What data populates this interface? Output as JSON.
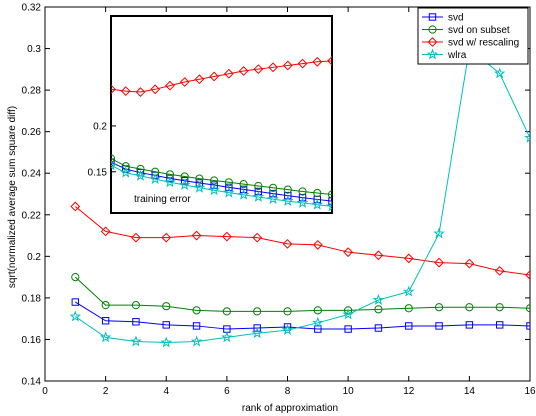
{
  "chart_data": {
    "type": "line",
    "main": {
      "xlabel": "rank of approximation",
      "ylabel": "sqrt(normalized average sum square diff)",
      "xlim": [
        0,
        16
      ],
      "ylim": [
        0.14,
        0.32
      ],
      "xticks": [
        0,
        2,
        4,
        6,
        8,
        10,
        12,
        14,
        16
      ],
      "yticks": [
        0.14,
        0.16,
        0.18,
        0.2,
        0.22,
        0.24,
        0.26,
        0.28,
        0.3,
        0.32
      ],
      "x": [
        1,
        2,
        3,
        4,
        5,
        6,
        7,
        8,
        9,
        10,
        11,
        12,
        13,
        14,
        15,
        16
      ],
      "series": [
        {
          "name": "svd",
          "color": "#0000ff",
          "marker": "square",
          "values": [
            0.178,
            0.169,
            0.1685,
            0.167,
            0.1665,
            0.165,
            0.1655,
            0.166,
            0.165,
            0.165,
            0.1655,
            0.1665,
            0.1665,
            0.167,
            0.167,
            0.1665
          ]
        },
        {
          "name": "svd on subset",
          "color": "#008000",
          "marker": "circle",
          "values": [
            0.19,
            0.1765,
            0.1765,
            0.176,
            0.174,
            0.1735,
            0.1735,
            0.1735,
            0.174,
            0.174,
            0.1745,
            0.175,
            0.1755,
            0.1755,
            0.1755,
            0.175
          ]
        },
        {
          "name": "svd w/ rescaling",
          "color": "#ff0000",
          "marker": "diamond",
          "values": [
            0.224,
            0.212,
            0.209,
            0.209,
            0.21,
            0.2095,
            0.209,
            0.206,
            0.2055,
            0.202,
            0.2005,
            0.199,
            0.197,
            0.1965,
            0.193,
            0.191
          ]
        },
        {
          "name": "wlra",
          "color": "#00bfbf",
          "marker": "star",
          "values": [
            0.171,
            0.161,
            0.159,
            0.1585,
            0.159,
            0.161,
            0.163,
            0.1645,
            0.168,
            0.172,
            0.179,
            0.183,
            0.211,
            0.3,
            0.288,
            0.257
          ]
        }
      ]
    },
    "inset": {
      "annotation": "training error",
      "ylim": [
        0.105,
        0.32
      ],
      "yticks": [
        0.15,
        0.2
      ],
      "yticklabels": [
        "0.15",
        "0.2"
      ],
      "x": [
        1,
        2,
        3,
        4,
        5,
        6,
        7,
        8,
        9,
        10,
        11,
        12,
        13,
        14,
        15,
        16
      ],
      "series": [
        {
          "name": "svd",
          "color": "#0000ff",
          "marker": "square",
          "values": [
            0.1605,
            0.153,
            0.149,
            0.146,
            0.1428,
            0.1402,
            0.1378,
            0.1355,
            0.133,
            0.1308,
            0.1285,
            0.1262,
            0.124,
            0.1218,
            0.1198,
            0.118
          ]
        },
        {
          "name": "svd on subset",
          "color": "#008000",
          "marker": "circle",
          "values": [
            0.1645,
            0.156,
            0.153,
            0.15,
            0.1472,
            0.1448,
            0.1425,
            0.1405,
            0.1385,
            0.1365,
            0.1345,
            0.1325,
            0.1305,
            0.1285,
            0.1268,
            0.1252
          ]
        },
        {
          "name": "svd w/ rescaling",
          "color": "#ff0000",
          "marker": "diamond",
          "values": [
            0.24,
            0.238,
            0.237,
            0.24,
            0.244,
            0.248,
            0.251,
            0.254,
            0.257,
            0.26,
            0.262,
            0.264,
            0.266,
            0.268,
            0.27,
            0.271
          ]
        },
        {
          "name": "wlra",
          "color": "#00bfbf",
          "marker": "star",
          "values": [
            0.157,
            0.149,
            0.1455,
            0.142,
            0.1385,
            0.1355,
            0.1325,
            0.1298,
            0.1272,
            0.1248,
            0.1225,
            0.1202,
            0.118,
            0.116,
            0.114,
            0.1122
          ]
        }
      ]
    },
    "legend": {
      "position": "top-right"
    }
  }
}
